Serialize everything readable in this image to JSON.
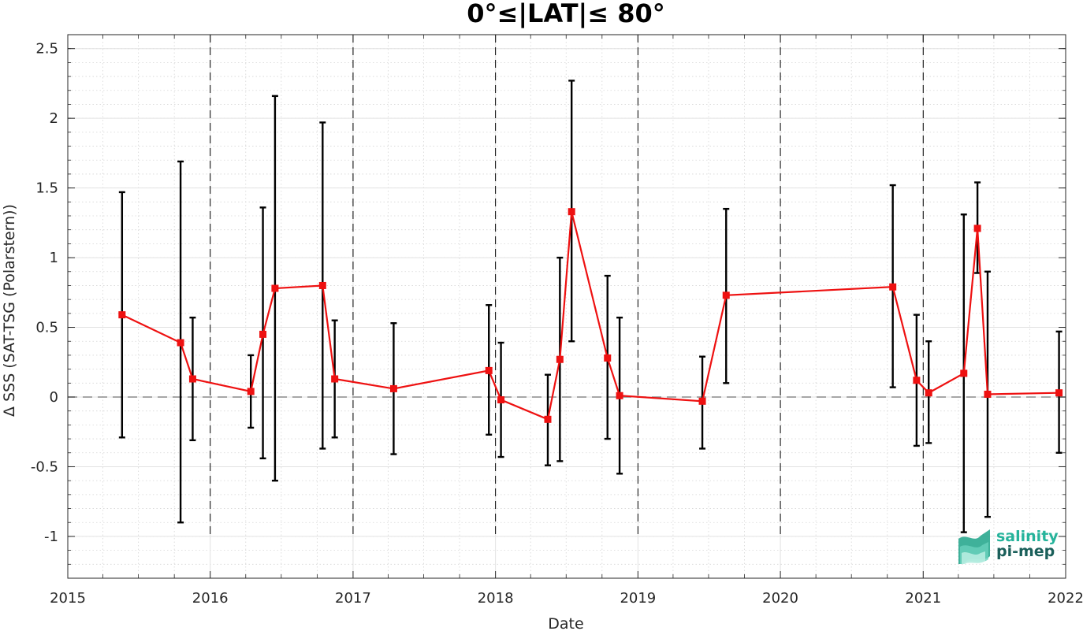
{
  "chart_data": {
    "type": "line",
    "title": "0°≤|LAT|≤ 80°",
    "xlabel": "Date",
    "ylabel": "Δ SSS (SAT-TSG (Polarstern))",
    "xlim": [
      "2015-01-01",
      "2022-01-01"
    ],
    "ylim": [
      -1.3,
      2.6
    ],
    "x_ticks": [
      "2015",
      "2016",
      "2017",
      "2018",
      "2019",
      "2020",
      "2021",
      "2022"
    ],
    "y_ticks": [
      "-1",
      "-0.5",
      "0",
      "0.5",
      "1",
      "1.5",
      "2",
      "2.5"
    ],
    "y_tick_values": [
      -1,
      -0.5,
      0,
      0.5,
      1,
      1.5,
      2,
      2.5
    ],
    "grid": true,
    "year_separators": [
      "2016",
      "2017",
      "2018",
      "2019",
      "2020",
      "2021"
    ],
    "zero_line": 0,
    "series": [
      {
        "color": "#ee1111",
        "marker": "square",
        "points": [
          {
            "date": "2015-05-20",
            "y": 0.59,
            "low": -0.29,
            "high": 1.47
          },
          {
            "date": "2015-10-17",
            "y": 0.39,
            "low": -0.9,
            "high": 1.69
          },
          {
            "date": "2015-11-17",
            "y": 0.13,
            "low": -0.31,
            "high": 0.57
          },
          {
            "date": "2016-04-14",
            "y": 0.04,
            "low": -0.22,
            "high": 0.3
          },
          {
            "date": "2016-05-15",
            "y": 0.45,
            "low": -0.44,
            "high": 1.36
          },
          {
            "date": "2016-06-15",
            "y": 0.78,
            "low": -0.6,
            "high": 2.16
          },
          {
            "date": "2016-10-15",
            "y": 0.8,
            "low": -0.37,
            "high": 1.97
          },
          {
            "date": "2016-11-15",
            "y": 0.13,
            "low": -0.29,
            "high": 0.55
          },
          {
            "date": "2017-04-15",
            "y": 0.06,
            "low": -0.41,
            "high": 0.53
          },
          {
            "date": "2017-12-15",
            "y": 0.19,
            "low": -0.27,
            "high": 0.66
          },
          {
            "date": "2018-01-15",
            "y": -0.02,
            "low": -0.43,
            "high": 0.39
          },
          {
            "date": "2018-05-15",
            "y": -0.16,
            "low": -0.49,
            "high": 0.16
          },
          {
            "date": "2018-06-15",
            "y": 0.27,
            "low": -0.46,
            "high": 1.0
          },
          {
            "date": "2018-07-15",
            "y": 1.33,
            "low": 0.4,
            "high": 2.27
          },
          {
            "date": "2018-10-15",
            "y": 0.28,
            "low": -0.3,
            "high": 0.87
          },
          {
            "date": "2018-11-15",
            "y": 0.01,
            "low": -0.55,
            "high": 0.57
          },
          {
            "date": "2019-06-15",
            "y": -0.03,
            "low": -0.37,
            "high": 0.29
          },
          {
            "date": "2019-08-15",
            "y": 0.73,
            "low": 0.1,
            "high": 1.35
          },
          {
            "date": "2020-10-15",
            "y": 0.79,
            "low": 0.07,
            "high": 1.52
          },
          {
            "date": "2020-12-15",
            "y": 0.12,
            "low": -0.35,
            "high": 0.59
          },
          {
            "date": "2021-01-15",
            "y": 0.03,
            "low": -0.33,
            "high": 0.4
          },
          {
            "date": "2021-04-15",
            "y": 0.17,
            "low": -0.97,
            "high": 1.31
          },
          {
            "date": "2021-05-20",
            "y": 1.21,
            "low": 0.89,
            "high": 1.54
          },
          {
            "date": "2021-06-15",
            "y": 0.02,
            "low": -0.86,
            "high": 0.9
          },
          {
            "date": "2021-12-15",
            "y": 0.03,
            "low": -0.4,
            "high": 0.47
          }
        ]
      }
    ]
  },
  "logo": {
    "line1": "salinity",
    "line2": "pi-mep",
    "color1": "#25b39b",
    "color2": "#1a5f5a"
  }
}
